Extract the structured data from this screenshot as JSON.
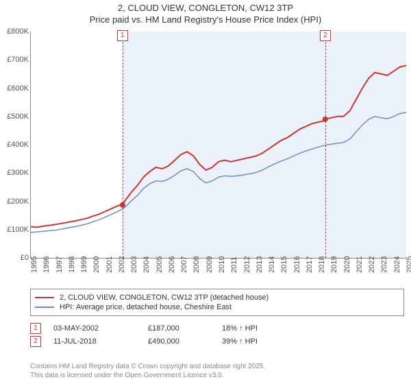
{
  "title": {
    "line1": "2, CLOUD VIEW, CONGLETON, CW12 3TP",
    "line2": "Price paid vs. HM Land Registry's House Price Index (HPI)"
  },
  "chart": {
    "type": "line",
    "background_color": "#ffffff",
    "shade_color": "#eaf1f8",
    "axis_color": "#888888",
    "ylim": [
      0,
      800
    ],
    "ytick_step": 100,
    "y_prefix": "£",
    "y_suffix": "K",
    "xlim": [
      1995,
      2025
    ],
    "xtick_step": 1,
    "shade_start": 2002.33,
    "shade_end": 2025,
    "series": [
      {
        "name": "price_paid",
        "label": "2, CLOUD VIEW, CONGLETON, CW12 3TP (detached house)",
        "color": "#cc3333",
        "width": 2,
        "data": [
          [
            1995,
            110
          ],
          [
            1995.5,
            108
          ],
          [
            1996,
            112
          ],
          [
            1996.5,
            115
          ],
          [
            1997,
            118
          ],
          [
            1997.5,
            122
          ],
          [
            1998,
            126
          ],
          [
            1998.5,
            130
          ],
          [
            1999,
            135
          ],
          [
            1999.5,
            140
          ],
          [
            2000,
            148
          ],
          [
            2000.5,
            155
          ],
          [
            2001,
            165
          ],
          [
            2001.5,
            175
          ],
          [
            2002,
            185
          ],
          [
            2002.33,
            187
          ],
          [
            2002.5,
            200
          ],
          [
            2003,
            230
          ],
          [
            2003.5,
            255
          ],
          [
            2004,
            285
          ],
          [
            2004.5,
            305
          ],
          [
            2005,
            320
          ],
          [
            2005.5,
            315
          ],
          [
            2006,
            325
          ],
          [
            2006.5,
            345
          ],
          [
            2007,
            365
          ],
          [
            2007.5,
            375
          ],
          [
            2008,
            360
          ],
          [
            2008.5,
            330
          ],
          [
            2009,
            310
          ],
          [
            2009.5,
            320
          ],
          [
            2010,
            340
          ],
          [
            2010.5,
            345
          ],
          [
            2011,
            340
          ],
          [
            2011.5,
            345
          ],
          [
            2012,
            350
          ],
          [
            2012.5,
            355
          ],
          [
            2013,
            360
          ],
          [
            2013.5,
            370
          ],
          [
            2014,
            385
          ],
          [
            2014.5,
            400
          ],
          [
            2015,
            415
          ],
          [
            2015.5,
            425
          ],
          [
            2016,
            440
          ],
          [
            2016.5,
            455
          ],
          [
            2017,
            465
          ],
          [
            2017.5,
            475
          ],
          [
            2018,
            480
          ],
          [
            2018.52,
            485
          ],
          [
            2018.53,
            490
          ],
          [
            2019,
            495
          ],
          [
            2019.5,
            500
          ],
          [
            2020,
            500
          ],
          [
            2020.5,
            520
          ],
          [
            2021,
            560
          ],
          [
            2021.5,
            600
          ],
          [
            2022,
            635
          ],
          [
            2022.5,
            655
          ],
          [
            2023,
            650
          ],
          [
            2023.5,
            645
          ],
          [
            2024,
            660
          ],
          [
            2024.5,
            675
          ],
          [
            2025,
            680
          ]
        ]
      },
      {
        "name": "hpi",
        "label": "HPI: Average price, detached house, Cheshire East",
        "color": "#6a8fc4",
        "width": 1.5,
        "data": [
          [
            1995,
            90
          ],
          [
            1995.5,
            92
          ],
          [
            1996,
            94
          ],
          [
            1996.5,
            96
          ],
          [
            1997,
            98
          ],
          [
            1997.5,
            102
          ],
          [
            1998,
            106
          ],
          [
            1998.5,
            110
          ],
          [
            1999,
            115
          ],
          [
            1999.5,
            120
          ],
          [
            2000,
            128
          ],
          [
            2000.5,
            135
          ],
          [
            2001,
            145
          ],
          [
            2001.5,
            155
          ],
          [
            2002,
            165
          ],
          [
            2002.5,
            178
          ],
          [
            2003,
            200
          ],
          [
            2003.5,
            220
          ],
          [
            2004,
            245
          ],
          [
            2004.5,
            262
          ],
          [
            2005,
            272
          ],
          [
            2005.5,
            270
          ],
          [
            2006,
            278
          ],
          [
            2006.5,
            292
          ],
          [
            2007,
            308
          ],
          [
            2007.5,
            315
          ],
          [
            2008,
            305
          ],
          [
            2008.5,
            280
          ],
          [
            2009,
            265
          ],
          [
            2009.5,
            272
          ],
          [
            2010,
            285
          ],
          [
            2010.5,
            290
          ],
          [
            2011,
            288
          ],
          [
            2011.5,
            290
          ],
          [
            2012,
            293
          ],
          [
            2012.5,
            297
          ],
          [
            2013,
            302
          ],
          [
            2013.5,
            310
          ],
          [
            2014,
            322
          ],
          [
            2014.5,
            332
          ],
          [
            2015,
            342
          ],
          [
            2015.5,
            350
          ],
          [
            2016,
            360
          ],
          [
            2016.5,
            370
          ],
          [
            2017,
            378
          ],
          [
            2017.5,
            385
          ],
          [
            2018,
            392
          ],
          [
            2018.5,
            398
          ],
          [
            2019,
            402
          ],
          [
            2019.5,
            405
          ],
          [
            2020,
            408
          ],
          [
            2020.5,
            420
          ],
          [
            2021,
            445
          ],
          [
            2021.5,
            470
          ],
          [
            2022,
            490
          ],
          [
            2022.5,
            500
          ],
          [
            2023,
            495
          ],
          [
            2023.5,
            492
          ],
          [
            2024,
            500
          ],
          [
            2024.5,
            510
          ],
          [
            2025,
            515
          ]
        ]
      }
    ],
    "markers": [
      {
        "n": "1",
        "x": 2002.33
      },
      {
        "n": "2",
        "x": 2018.53
      }
    ]
  },
  "legend": {
    "items": [
      {
        "color": "#cc3333",
        "label": "2, CLOUD VIEW, CONGLETON, CW12 3TP (detached house)"
      },
      {
        "color": "#6a8fc4",
        "label": "HPI: Average price, detached house, Cheshire East"
      }
    ]
  },
  "sales": [
    {
      "n": "1",
      "date": "03-MAY-2002",
      "price": "£187,000",
      "pct": "18% ↑ HPI"
    },
    {
      "n": "2",
      "date": "11-JUL-2018",
      "price": "£490,000",
      "pct": "39% ↑ HPI"
    }
  ],
  "attribution": {
    "line1": "Contains HM Land Registry data © Crown copyright and database right 2025.",
    "line2": "This data is licensed under the Open Government Licence v3.0."
  }
}
